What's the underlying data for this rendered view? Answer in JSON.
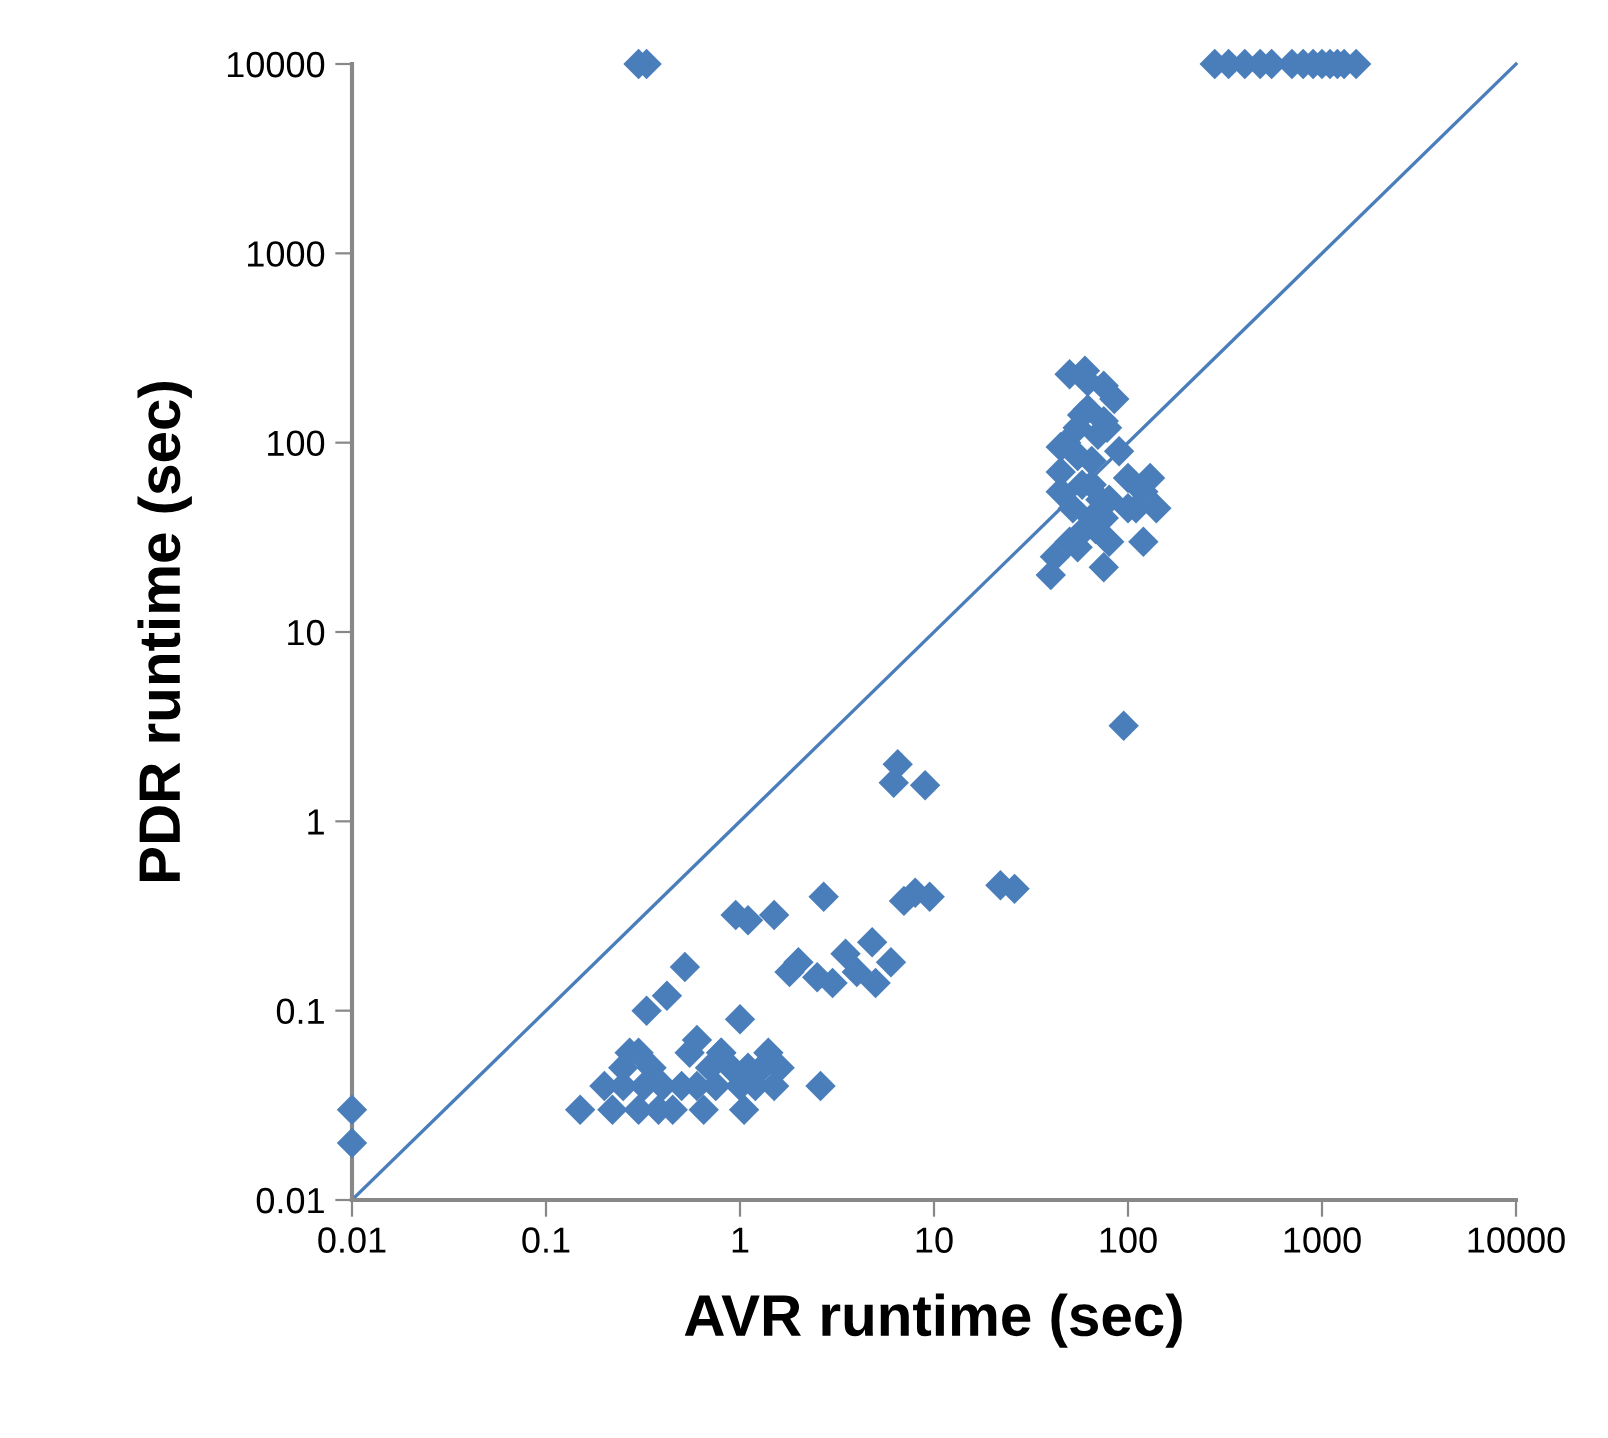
{
  "chart_data": {
    "type": "scatter",
    "xlabel": "AVR runtime (sec)",
    "ylabel": "PDR runtime (sec)",
    "log": "xy",
    "marker": "diamond",
    "grid": false,
    "legend": false,
    "xlim": [
      0.01,
      10000
    ],
    "ylim": [
      0.01,
      10000
    ],
    "xticks": [
      0.01,
      0.1,
      1,
      10,
      100,
      1000,
      10000
    ],
    "yticks": [
      0.01,
      0.1,
      1,
      10,
      100,
      1000,
      10000
    ],
    "series": [
      {
        "color": "#4a7ebb",
        "x": [
          0.01,
          0.01,
          0.3,
          0.33,
          280,
          330,
          400,
          480,
          550,
          700,
          800,
          900,
          1000,
          1100,
          1200,
          1300,
          1500,
          0.15,
          0.2,
          0.22,
          0.25,
          0.27,
          0.3,
          0.32,
          0.35,
          0.38,
          0.4,
          0.45,
          0.5,
          0.55,
          0.6,
          0.65,
          0.7,
          0.75,
          0.8,
          0.9,
          1,
          1.05,
          1.1,
          1.2,
          1.3,
          1.4,
          1.5,
          1.6,
          0.25,
          0.3,
          0.6,
          0.8,
          1,
          0.33,
          0.42,
          0.52,
          0.95,
          1.1,
          1.5,
          2.6,
          1.8,
          2,
          2.5,
          2.7,
          3,
          3.5,
          4,
          4.8,
          5,
          6,
          6.2,
          6.5,
          7,
          8,
          9,
          9.5,
          22,
          26,
          95,
          40,
          42,
          45,
          48,
          50,
          52,
          55,
          58,
          60,
          62,
          65,
          72,
          75,
          78,
          80,
          45,
          55,
          65,
          70,
          75,
          55,
          60,
          68,
          85,
          100,
          110,
          120,
          130,
          140,
          75,
          45,
          50,
          58,
          62,
          80,
          90,
          120,
          65,
          75,
          100
        ],
        "values": [
          0.03,
          0.02,
          10000,
          10000,
          10000,
          10000,
          10000,
          10000,
          10000,
          10000,
          10000,
          10000,
          10000,
          10000,
          10000,
          10000,
          10000,
          0.03,
          0.04,
          0.03,
          0.05,
          0.06,
          0.03,
          0.04,
          0.05,
          0.03,
          0.04,
          0.03,
          0.04,
          0.06,
          0.07,
          0.03,
          0.05,
          0.04,
          0.06,
          0.05,
          0.04,
          0.03,
          0.05,
          0.04,
          0.05,
          0.06,
          0.04,
          0.05,
          0.04,
          0.06,
          0.04,
          0.06,
          0.09,
          0.1,
          0.12,
          0.17,
          0.32,
          0.3,
          0.32,
          0.04,
          0.16,
          0.18,
          0.15,
          0.4,
          0.14,
          0.2,
          0.16,
          0.23,
          0.14,
          0.18,
          1.6,
          2,
          0.38,
          0.42,
          1.55,
          0.4,
          0.46,
          0.44,
          3.2,
          20,
          25,
          70,
          100,
          30,
          45,
          120,
          60,
          35,
          150,
          80,
          50,
          200,
          120,
          30,
          55,
          28,
          40,
          110,
          22,
          85,
          240,
          35,
          170,
          65,
          45,
          55,
          65,
          45,
          40,
          95,
          230,
          140,
          210,
          50,
          90,
          30,
          60,
          130,
          45
        ]
      },
      {
        "type": "line",
        "color": "#4a7ebb",
        "marker": "none",
        "x": [
          0.01,
          10000
        ],
        "values": [
          0.01,
          10000
        ]
      }
    ]
  }
}
